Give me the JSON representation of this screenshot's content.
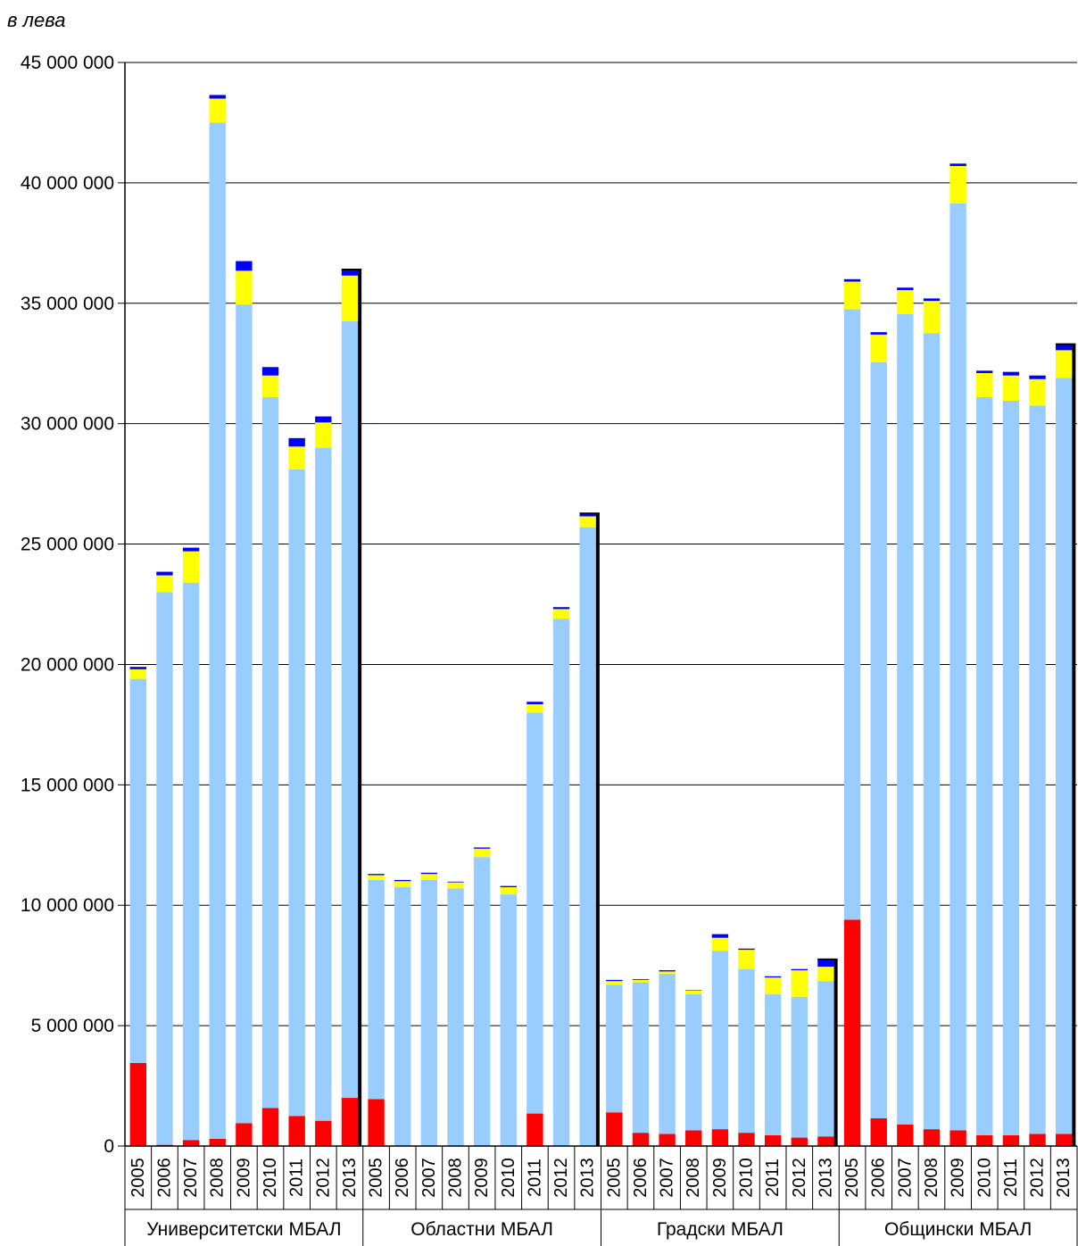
{
  "chart_data": {
    "type": "bar",
    "stacked": true,
    "unit_label": "в лева",
    "ylim": [
      0,
      45000000
    ],
    "yticks": [
      0,
      5000000,
      10000000,
      15000000,
      20000000,
      25000000,
      30000000,
      35000000,
      40000000,
      45000000
    ],
    "ytick_labels": [
      "0",
      "5 000 000",
      "10 000 000",
      "15 000 000",
      "20 000 000",
      "25 000 000",
      "30 000 000",
      "35 000 000",
      "40 000 000",
      "45 000 000"
    ],
    "grid": true,
    "years": [
      "2005",
      "2006",
      "2007",
      "2008",
      "2009",
      "2010",
      "2011",
      "2012",
      "2013"
    ],
    "series_colors": [
      "#ff0000",
      "#99ccff",
      "#ffff00",
      "#0000ff"
    ],
    "groups": [
      {
        "label": "Университетски МБАЛ",
        "stacks": [
          [
            3450000,
            15950000,
            400000,
            100000
          ],
          [
            50000,
            22950000,
            700000,
            150000
          ],
          [
            250000,
            23150000,
            1300000,
            150000
          ],
          [
            300000,
            42200000,
            1000000,
            150000
          ],
          [
            950000,
            34000000,
            1400000,
            400000
          ],
          [
            1580000,
            29520000,
            900000,
            350000
          ],
          [
            1250000,
            26850000,
            950000,
            350000
          ],
          [
            1050000,
            27950000,
            1050000,
            250000
          ],
          [
            2000000,
            32250000,
            1900000,
            250000
          ]
        ]
      },
      {
        "label": "Областни МБАЛ",
        "stacks": [
          [
            1950000,
            9100000,
            200000,
            50000
          ],
          [
            0,
            10750000,
            250000,
            50000
          ],
          [
            0,
            11050000,
            250000,
            50000
          ],
          [
            0,
            10700000,
            250000,
            30000
          ],
          [
            0,
            12000000,
            350000,
            50000
          ],
          [
            0,
            10450000,
            300000,
            50000
          ],
          [
            1350000,
            16650000,
            350000,
            100000
          ],
          [
            0,
            21900000,
            400000,
            80000
          ],
          [
            0,
            25700000,
            450000,
            120000
          ]
        ]
      },
      {
        "label": "Градски МБАЛ",
        "stacks": [
          [
            1400000,
            5300000,
            150000,
            50000
          ],
          [
            550000,
            6250000,
            100000,
            30000
          ],
          [
            500000,
            6650000,
            100000,
            50000
          ],
          [
            650000,
            5650000,
            150000,
            20000
          ],
          [
            700000,
            7400000,
            550000,
            150000
          ],
          [
            550000,
            6800000,
            800000,
            50000
          ],
          [
            450000,
            5850000,
            700000,
            50000
          ],
          [
            350000,
            5850000,
            1100000,
            50000
          ],
          [
            400000,
            6450000,
            600000,
            300000
          ]
        ]
      },
      {
        "label": "Общински МБАЛ",
        "stacks": [
          [
            9400000,
            25350000,
            1150000,
            100000
          ],
          [
            1150000,
            31400000,
            1150000,
            100000
          ],
          [
            900000,
            33650000,
            1000000,
            100000
          ],
          [
            700000,
            33050000,
            1350000,
            100000
          ],
          [
            650000,
            38500000,
            1550000,
            100000
          ],
          [
            450000,
            30650000,
            1000000,
            100000
          ],
          [
            450000,
            30500000,
            1050000,
            150000
          ],
          [
            500000,
            30250000,
            1100000,
            150000
          ],
          [
            500000,
            31400000,
            1150000,
            250000
          ]
        ]
      }
    ]
  }
}
